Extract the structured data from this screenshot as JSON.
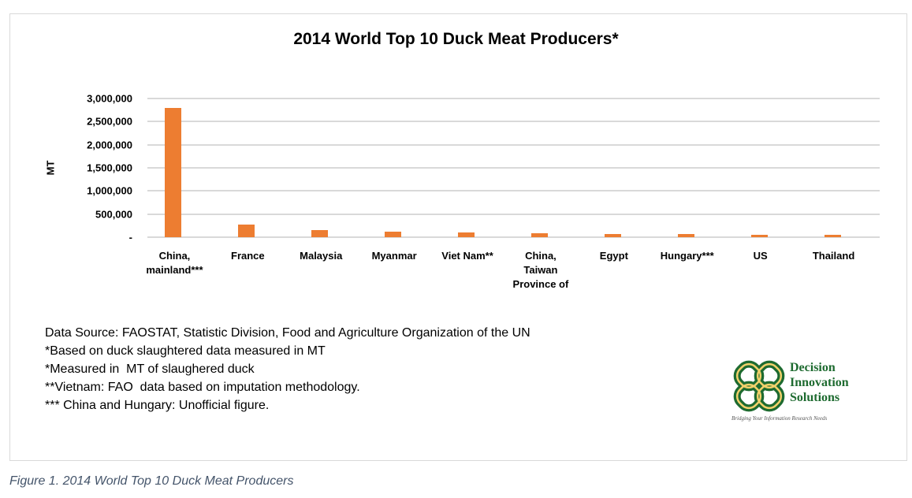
{
  "chart_data": {
    "type": "bar",
    "title": "2014 World Top 10 Duck Meat Producers*",
    "xlabel": "",
    "ylabel": "MT",
    "ylim": [
      0,
      3000000
    ],
    "grid": true,
    "legend": null,
    "color": "#ed7d31",
    "categories": [
      "China, mainland***",
      "France",
      "Malaysia",
      "Myanmar",
      "Viet Nam**",
      "China, Taiwan Province of",
      "Egypt",
      "Hungary***",
      "US",
      "Thailand"
    ],
    "values": [
      2800000,
      279000,
      151000,
      122000,
      105000,
      82000,
      70000,
      70000,
      52000,
      52000
    ],
    "yticks": [
      0,
      500000,
      1000000,
      1500000,
      2000000,
      2500000,
      3000000
    ],
    "ytick_labels": [
      "-",
      "500,000",
      "1,000,000",
      "1,500,000",
      "2,000,000",
      "2,500,000",
      "3,000,000"
    ]
  },
  "chart": {
    "title": "2014 World Top 10 Duck Meat Producers*",
    "ylabel": "MT",
    "yticks": [
      "3,000,000",
      "2,500,000",
      "2,000,000",
      "1,500,000",
      "1,000,000",
      "500,000",
      "-"
    ],
    "xlabels": [
      [
        "China,",
        "mainland***"
      ],
      [
        "France"
      ],
      [
        "Malaysia"
      ],
      [
        "Myanmar"
      ],
      [
        "Viet Nam**"
      ],
      [
        "China,",
        "Taiwan",
        "Province of"
      ],
      [
        "Egypt"
      ],
      [
        "Hungary***"
      ],
      [
        "US"
      ],
      [
        "Thailand"
      ]
    ]
  },
  "notes": [
    "Data Source: FAOSTAT, Statistic Division, Food and Agriculture Organization of the UN",
    "*Based on duck slaughtered data measured in MT",
    "*Measured in  MT of slaughered duck",
    "**Vietnam: FAO  data based on imputation methodology.",
    "*** China and Hungary: Unofficial figure."
  ],
  "logo": {
    "line1": "Decision",
    "line2": "Innovation",
    "line3": "Solutions",
    "tagline": "Bridging Your Information Research Needs",
    "colors": {
      "green": "#1e6b30",
      "gold": "#f2d16b"
    }
  },
  "caption": "Figure 1. 2014 World Top 10 Duck Meat Producers"
}
